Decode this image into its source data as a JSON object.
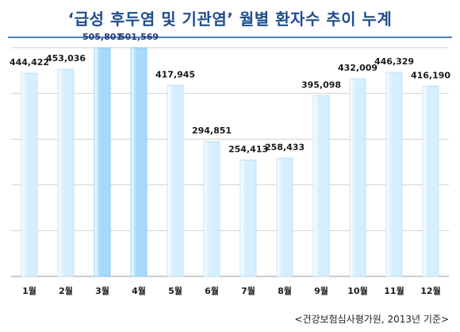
{
  "title": "‘급성 후두염 및 기관염’ 월별 환자수 추이 누계",
  "source": "<건강보험심사평가원, 2013년 기준>",
  "colors": {
    "bar": "#d6efff",
    "bar_highlight": "#a6d9fb",
    "label": "#1a1a1a",
    "label_highlight": "#1f3d7a",
    "grid": "#d0d0d0",
    "title": "#1f4e8c"
  },
  "chart_data": {
    "type": "bar",
    "title": "‘급성 후두염 및 기관염’ 월별 환자수 추이 누계",
    "xlabel": "",
    "ylabel": "",
    "categories": [
      "1월",
      "2월",
      "3월",
      "4월",
      "5월",
      "6월",
      "7월",
      "8월",
      "9월",
      "10월",
      "11월",
      "12월"
    ],
    "values": [
      444422,
      453036,
      505801,
      501569,
      417945,
      294851,
      254413,
      258433,
      395098,
      432009,
      446329,
      416190
    ],
    "labels": [
      "444,422",
      "453,036",
      "505,801",
      "501,569",
      "417,945",
      "294,851",
      "254,413",
      "258,433",
      "395,098",
      "432,009",
      "446,329",
      "416,190"
    ],
    "highlight": [
      false,
      false,
      true,
      true,
      false,
      false,
      false,
      false,
      false,
      false,
      false,
      false
    ],
    "ylim": [
      0,
      500000
    ],
    "grid": true,
    "legend": "none"
  }
}
